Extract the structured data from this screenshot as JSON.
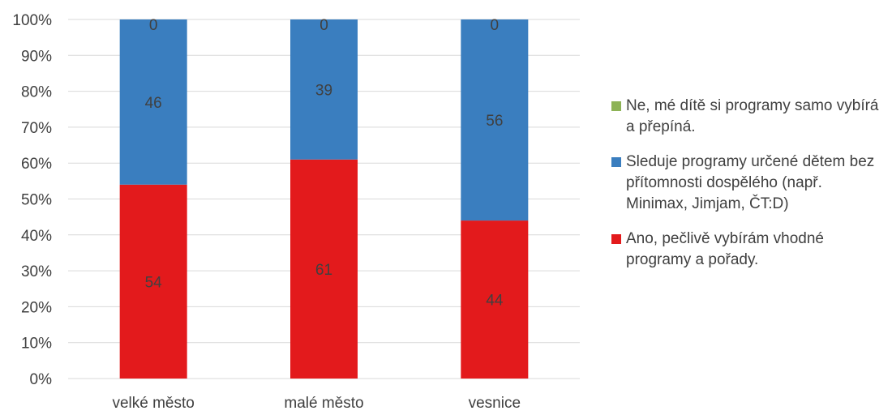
{
  "chart_data": {
    "type": "bar",
    "stacked": true,
    "percent": true,
    "categories": [
      "velké město",
      "malé město",
      "vesnice"
    ],
    "series": [
      {
        "name": "Ano, pečlivě vybírám vhodné programy a pořady.",
        "values": [
          54,
          61,
          44
        ],
        "color": "#E31A1C"
      },
      {
        "name": "Sleduje programy určené dětem bez přítomnosti dospělého (např. Minimax, Jimjam, ČT:D)",
        "values": [
          46,
          39,
          56
        ],
        "color": "#3A7EBF"
      },
      {
        "name": "Ne, mé dítě si programy samo vybírá a přepíná.",
        "values": [
          0,
          0,
          0
        ],
        "color": "#8DB356"
      }
    ],
    "yticks": [
      "0%",
      "10%",
      "20%",
      "30%",
      "40%",
      "50%",
      "60%",
      "70%",
      "80%",
      "90%",
      "100%"
    ],
    "ylim": [
      0,
      100
    ],
    "grid": true,
    "legend_position": "right",
    "legend_order": [
      2,
      1,
      0
    ]
  }
}
